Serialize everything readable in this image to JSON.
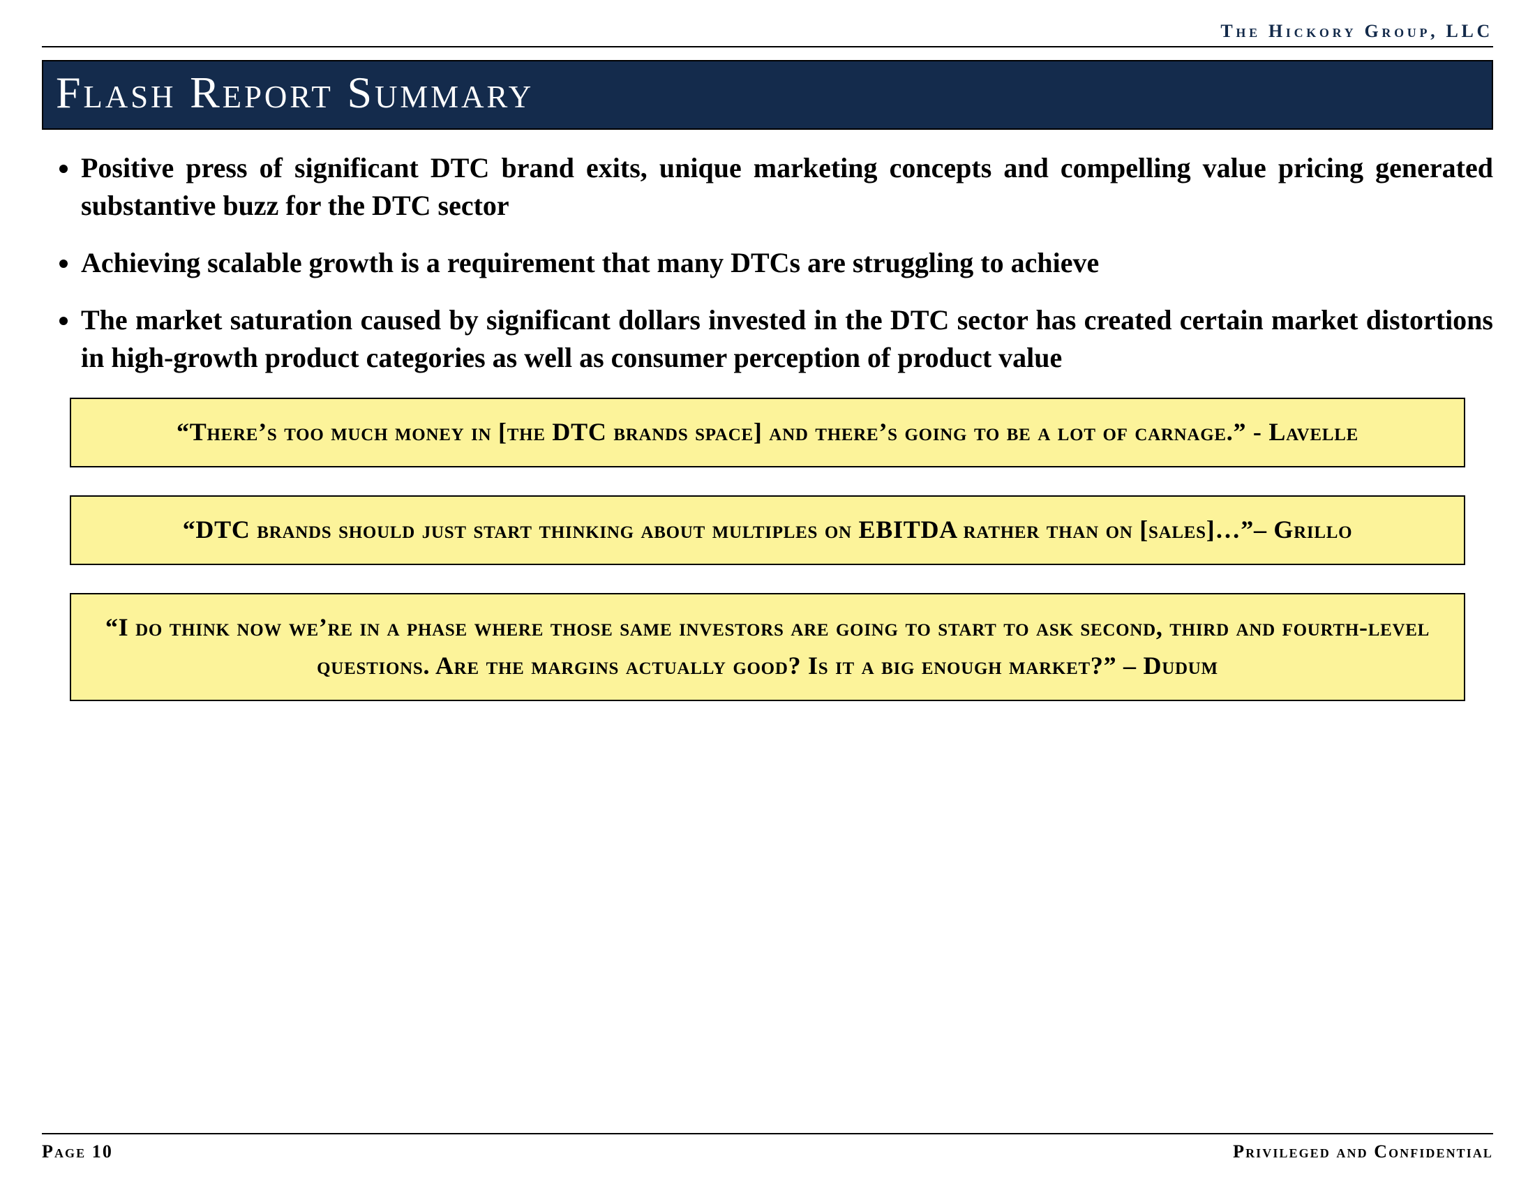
{
  "header": {
    "org": "The Hickory Group, LLC"
  },
  "title": "Flash Report Summary",
  "bullets": [
    "Positive press of significant DTC brand exits, unique marketing concepts and compelling value pricing generated substantive buzz for the DTC sector",
    "Achieving scalable growth is a requirement that many DTCs are struggling to achieve",
    "The market saturation caused by significant dollars invested in the DTC sector has created certain market distortions in high-growth product categories as well as consumer perception of product value"
  ],
  "quotes": [
    "“There’s too much money in [the DTC brands space] and there’s going to be a lot of carnage.” - Lavelle",
    "“DTC brands should just start thinking about multiples on EBITDA rather than on [sales]…”– Grillo",
    "“I do think now we’re in a phase where those same investors are going to start to ask second, third and fourth-level questions. Are the margins actually good? Is it a big enough market?” – Dudum"
  ],
  "footer": {
    "page": "Page 10",
    "confidential": "Privileged and Confidential"
  },
  "colors": {
    "title_bg": "#142b4c",
    "title_fg": "#ffffff",
    "quote_bg": "#fcf39a",
    "rule": "#000000",
    "header_text": "#132a4a"
  }
}
